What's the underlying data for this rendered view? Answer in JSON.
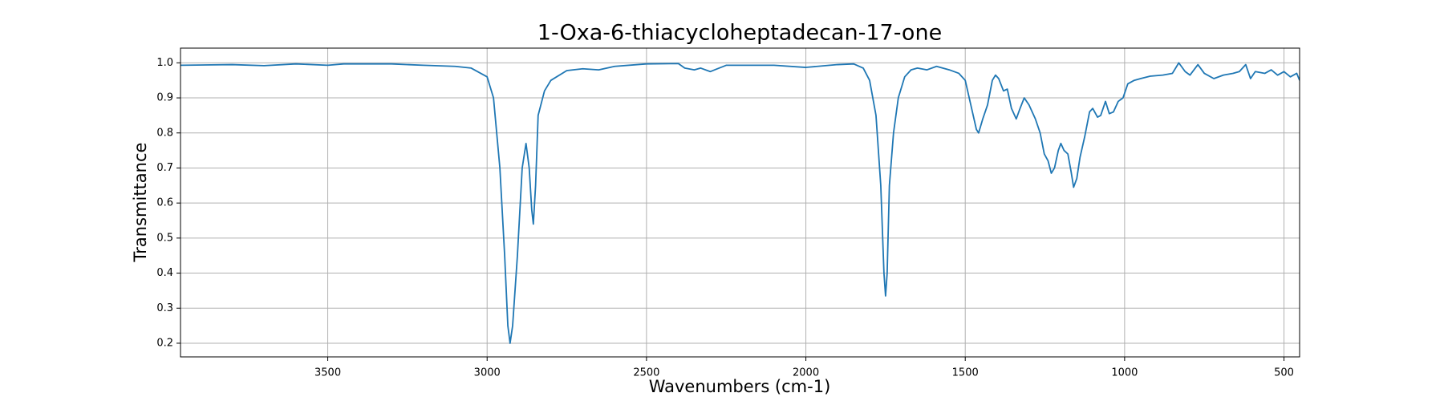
{
  "chart_data": {
    "type": "line",
    "title": "1-Oxa-6-thiacycloheptadecan-17-one",
    "xlabel": "Wavenumbers (cm-1)",
    "ylabel": "Transmittance",
    "color": "#1f77b4",
    "grid": true,
    "xlim": [
      3962,
      451
    ],
    "ylim": [
      0.161,
      1.042
    ],
    "xticks": [
      3500,
      3000,
      2500,
      2000,
      1500,
      1000,
      500
    ],
    "yticks": [
      0.2,
      0.3,
      0.4,
      0.5,
      0.6,
      0.7,
      0.8,
      0.9,
      {
        "value": 1.0,
        "label": "1.0"
      }
    ],
    "x": [
      3962,
      3800,
      3700,
      3600,
      3500,
      3450,
      3300,
      3200,
      3100,
      3050,
      3000,
      2980,
      2960,
      2945,
      2935,
      2928,
      2920,
      2905,
      2890,
      2878,
      2868,
      2860,
      2855,
      2848,
      2840,
      2820,
      2800,
      2750,
      2700,
      2650,
      2600,
      2500,
      2400,
      2380,
      2350,
      2330,
      2300,
      2250,
      2100,
      2000,
      1900,
      1850,
      1820,
      1800,
      1780,
      1765,
      1755,
      1750,
      1745,
      1738,
      1725,
      1710,
      1690,
      1670,
      1650,
      1620,
      1590,
      1550,
      1520,
      1500,
      1480,
      1465,
      1458,
      1445,
      1430,
      1415,
      1405,
      1395,
      1380,
      1368,
      1355,
      1340,
      1328,
      1315,
      1300,
      1280,
      1265,
      1252,
      1240,
      1230,
      1220,
      1208,
      1200,
      1190,
      1178,
      1168,
      1160,
      1150,
      1140,
      1125,
      1110,
      1100,
      1085,
      1075,
      1060,
      1048,
      1035,
      1020,
      1005,
      990,
      970,
      950,
      920,
      880,
      850,
      830,
      810,
      795,
      770,
      750,
      720,
      690,
      660,
      640,
      620,
      605,
      590,
      560,
      540,
      520,
      500,
      480,
      460,
      451
    ],
    "values": [
      0.993,
      0.995,
      0.992,
      0.997,
      0.993,
      0.997,
      0.997,
      0.993,
      0.99,
      0.985,
      0.96,
      0.9,
      0.7,
      0.45,
      0.25,
      0.2,
      0.25,
      0.45,
      0.7,
      0.77,
      0.7,
      0.58,
      0.54,
      0.65,
      0.85,
      0.92,
      0.95,
      0.978,
      0.983,
      0.98,
      0.99,
      0.997,
      0.998,
      0.985,
      0.98,
      0.985,
      0.975,
      0.993,
      0.993,
      0.987,
      0.995,
      0.997,
      0.985,
      0.95,
      0.85,
      0.65,
      0.4,
      0.335,
      0.4,
      0.65,
      0.8,
      0.9,
      0.96,
      0.98,
      0.985,
      0.98,
      0.99,
      0.98,
      0.97,
      0.95,
      0.87,
      0.81,
      0.8,
      0.84,
      0.88,
      0.95,
      0.965,
      0.955,
      0.92,
      0.925,
      0.87,
      0.84,
      0.87,
      0.9,
      0.88,
      0.84,
      0.8,
      0.74,
      0.72,
      0.685,
      0.7,
      0.75,
      0.77,
      0.75,
      0.74,
      0.69,
      0.645,
      0.67,
      0.73,
      0.79,
      0.86,
      0.87,
      0.845,
      0.85,
      0.89,
      0.855,
      0.86,
      0.89,
      0.9,
      0.94,
      0.95,
      0.955,
      0.962,
      0.965,
      0.97,
      1.0,
      0.975,
      0.965,
      0.995,
      0.97,
      0.955,
      0.965,
      0.97,
      0.975,
      0.995,
      0.955,
      0.975,
      0.97,
      0.98,
      0.965,
      0.975,
      0.96,
      0.97,
      0.95
    ]
  }
}
